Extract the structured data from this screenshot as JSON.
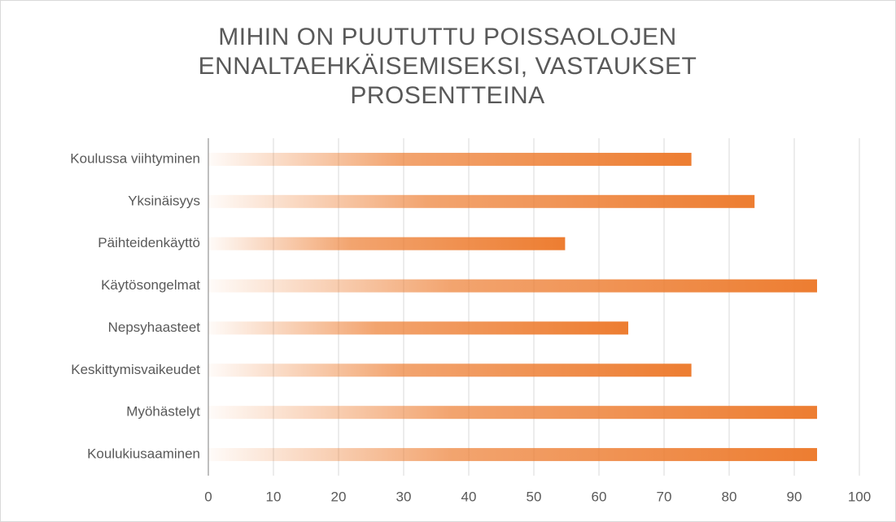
{
  "chart_data": {
    "type": "bar",
    "orientation": "horizontal",
    "title": "MIHIN ON PUUTUTTU POISSAOLOJEN ENNALTAEHKÄISEMISEKSI, VASTAUKSET PROSENTTEINA",
    "categories": [
      "Koulussa viihtyminen",
      "Yksinäisyys",
      "Päihteidenkäyttö",
      "Käytösongelmat",
      "Nepsyhaasteet",
      "Keskittymisvaikeudet",
      "Myöhästelyt",
      "Koulukiusaaminen"
    ],
    "values": [
      74.2,
      83.9,
      54.8,
      93.5,
      64.5,
      74.2,
      93.5,
      93.5
    ],
    "color": "#ed7d31",
    "xlim": [
      0,
      100
    ],
    "xticks": [
      0,
      10,
      20,
      30,
      40,
      50,
      60,
      70,
      80,
      90,
      100
    ],
    "grid": true
  }
}
